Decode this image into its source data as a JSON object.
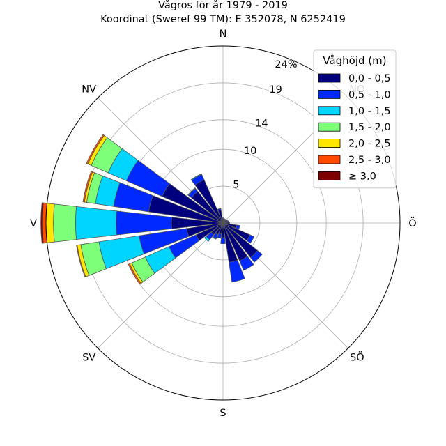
{
  "chart_data": {
    "type": "windrose",
    "title": "Vågros för år 1979 - 2019",
    "subtitle": "Koordinat (Sweref 99 TM): E 352078, N 6252419",
    "direction_labels": [
      "N",
      "NO",
      "Ö",
      "SÖ",
      "S",
      "SV",
      "V",
      "NV"
    ],
    "radial_ticks": [
      "5",
      "10",
      "14",
      "19",
      "24%"
    ],
    "radial_tick_values": [
      5,
      10,
      14,
      19,
      24
    ],
    "rmax": 24,
    "legend": {
      "title": "Våghöjd (m)",
      "placement": "top-right",
      "entries": [
        "0,0 - 0,5",
        "0,5 - 1,0",
        "1,0 - 1,5",
        "1,5 - 2,0",
        "2,0 - 2,5",
        "2,5 - 3,0",
        "≥ 3,0"
      ],
      "colors": [
        "#00007f",
        "#0029ff",
        "#00d5ff",
        "#7dff7a",
        "#ffe600",
        "#ff4a00",
        "#7f0000"
      ]
    },
    "sectors": [
      {
        "direction": 0,
        "cumulative": [
          0.6,
          0.7,
          0.7,
          0.7,
          0.7,
          0.7,
          0.7
        ]
      },
      {
        "direction": 15,
        "cumulative": [
          0.5,
          0.6,
          0.6,
          0.6,
          0.6,
          0.6,
          0.6
        ]
      },
      {
        "direction": 30,
        "cumulative": [
          0.5,
          0.6,
          0.6,
          0.6,
          0.6,
          0.6,
          0.6
        ]
      },
      {
        "direction": 45,
        "cumulative": [
          0.5,
          0.6,
          0.6,
          0.6,
          0.6,
          0.6,
          0.6
        ]
      },
      {
        "direction": 60,
        "cumulative": [
          0.6,
          0.7,
          0.7,
          0.7,
          0.7,
          0.7,
          0.7
        ]
      },
      {
        "direction": 75,
        "cumulative": [
          0.7,
          0.8,
          0.8,
          0.8,
          0.8,
          0.8,
          0.8
        ]
      },
      {
        "direction": 90,
        "cumulative": [
          0.8,
          0.9,
          0.9,
          0.9,
          0.9,
          0.9,
          0.9
        ]
      },
      {
        "direction": 105,
        "cumulative": [
          1.9,
          2.3,
          2.3,
          2.3,
          2.3,
          2.3,
          2.3
        ]
      },
      {
        "direction": 120,
        "cumulative": [
          4.0,
          4.6,
          4.6,
          4.6,
          4.6,
          4.6,
          4.6
        ]
      },
      {
        "direction": 135,
        "cumulative": [
          6.0,
          6.8,
          6.8,
          6.8,
          6.8,
          6.8,
          6.8
        ]
      },
      {
        "direction": 150,
        "cumulative": [
          5.6,
          7.0,
          7.0,
          7.0,
          7.0,
          7.0,
          7.0
        ]
      },
      {
        "direction": 165,
        "cumulative": [
          5.4,
          8.1,
          8.1,
          8.1,
          8.1,
          8.1,
          8.1
        ]
      },
      {
        "direction": 180,
        "cumulative": [
          2.0,
          2.8,
          2.8,
          2.8,
          2.8,
          2.8,
          2.8
        ]
      },
      {
        "direction": 195,
        "cumulative": [
          1.5,
          2.1,
          2.1,
          2.1,
          2.1,
          2.1,
          2.1
        ]
      },
      {
        "direction": 210,
        "cumulative": [
          1.7,
          2.3,
          2.4,
          2.4,
          2.4,
          2.4,
          2.4
        ]
      },
      {
        "direction": 225,
        "cumulative": [
          2.0,
          2.9,
          3.2,
          3.2,
          3.2,
          3.2,
          3.2
        ]
      },
      {
        "direction": 240,
        "cumulative": [
          4.0,
          8.0,
          11.5,
          13.5,
          13.8,
          14.0,
          14.0
        ]
      },
      {
        "direction": 255,
        "cumulative": [
          5.0,
          11.5,
          17.0,
          19.5,
          20.0,
          20.1,
          20.1
        ]
      },
      {
        "direction": 270,
        "cumulative": [
          7.0,
          14.5,
          20.0,
          23.0,
          24.0,
          24.5,
          24.7
        ]
      },
      {
        "direction": 285,
        "cumulative": [
          10.2,
          15.0,
          17.5,
          18.7,
          19.0,
          19.2,
          19.2
        ]
      },
      {
        "direction": 300,
        "cumulative": [
          9.0,
          14.3,
          17.0,
          19.5,
          20.0,
          20.2,
          20.2
        ]
      },
      {
        "direction": 315,
        "cumulative": [
          5.5,
          6.0,
          6.1,
          6.1,
          6.1,
          6.1,
          6.1
        ]
      },
      {
        "direction": 330,
        "cumulative": [
          6.4,
          7.2,
          7.3,
          7.3,
          7.3,
          7.3,
          7.3
        ]
      },
      {
        "direction": 345,
        "cumulative": [
          1.8,
          2.0,
          2.0,
          2.0,
          2.0,
          2.0,
          2.0
        ]
      }
    ]
  }
}
